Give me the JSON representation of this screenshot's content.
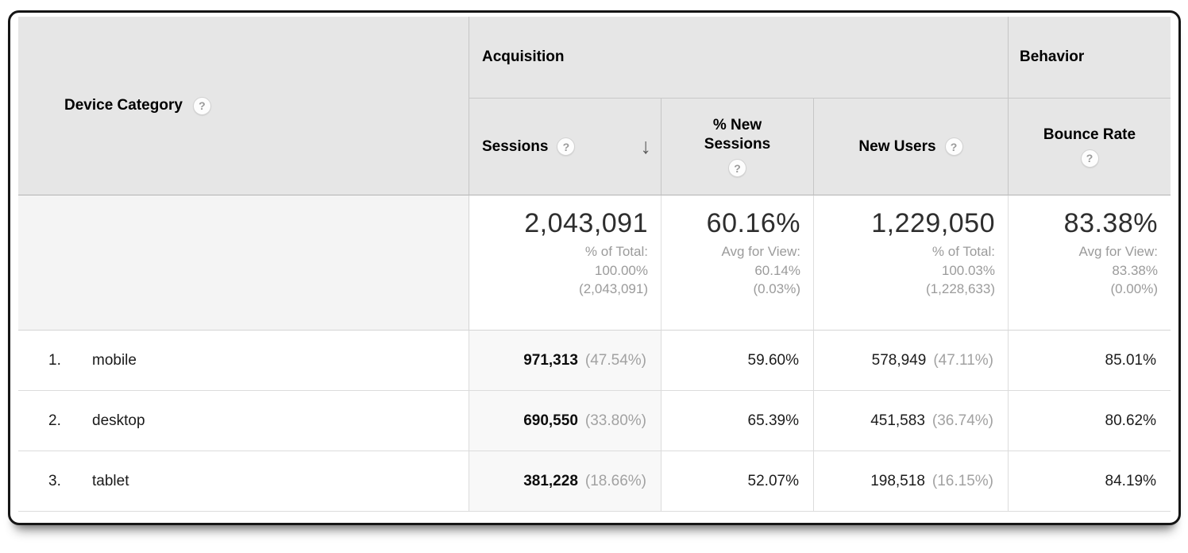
{
  "colors": {
    "header_bg": "#e6e6e6",
    "sorted_col_bg": "#f8f8f8",
    "frame_border": "#151515",
    "secondary_text": "#9b9b9b"
  },
  "table": {
    "dimension_header": {
      "label": "Device Category"
    },
    "groups": {
      "acquisition": "Acquisition",
      "behavior": "Behavior"
    },
    "columns": {
      "sessions": "Sessions",
      "pct_new_sessions": "% New Sessions",
      "new_users": "New Users",
      "bounce_rate": "Bounce Rate"
    },
    "icons": {
      "help": "?",
      "sort_desc": "↓"
    },
    "summary": {
      "sessions": {
        "value": "2,043,091",
        "line1": "% of Total:",
        "line2": "100.00%",
        "line3": "(2,043,091)"
      },
      "pct_new_sessions": {
        "value": "60.16%",
        "line1": "Avg for View:",
        "line2": "60.14%",
        "line3": "(0.03%)"
      },
      "new_users": {
        "value": "1,229,050",
        "line1": "% of Total:",
        "line2": "100.03%",
        "line3": "(1,228,633)"
      },
      "bounce_rate": {
        "value": "83.38%",
        "line1": "Avg for View:",
        "line2": "83.38%",
        "line3": "(0.00%)"
      }
    },
    "rows": [
      {
        "index": "1.",
        "label": "mobile",
        "sessions": "971,313",
        "sessions_pct": "(47.54%)",
        "pct_new_sessions": "59.60%",
        "new_users": "578,949",
        "new_users_pct": "(47.11%)",
        "bounce_rate": "85.01%"
      },
      {
        "index": "2.",
        "label": "desktop",
        "sessions": "690,550",
        "sessions_pct": "(33.80%)",
        "pct_new_sessions": "65.39%",
        "new_users": "451,583",
        "new_users_pct": "(36.74%)",
        "bounce_rate": "80.62%"
      },
      {
        "index": "3.",
        "label": "tablet",
        "sessions": "381,228",
        "sessions_pct": "(18.66%)",
        "pct_new_sessions": "52.07%",
        "new_users": "198,518",
        "new_users_pct": "(16.15%)",
        "bounce_rate": "84.19%"
      }
    ]
  }
}
